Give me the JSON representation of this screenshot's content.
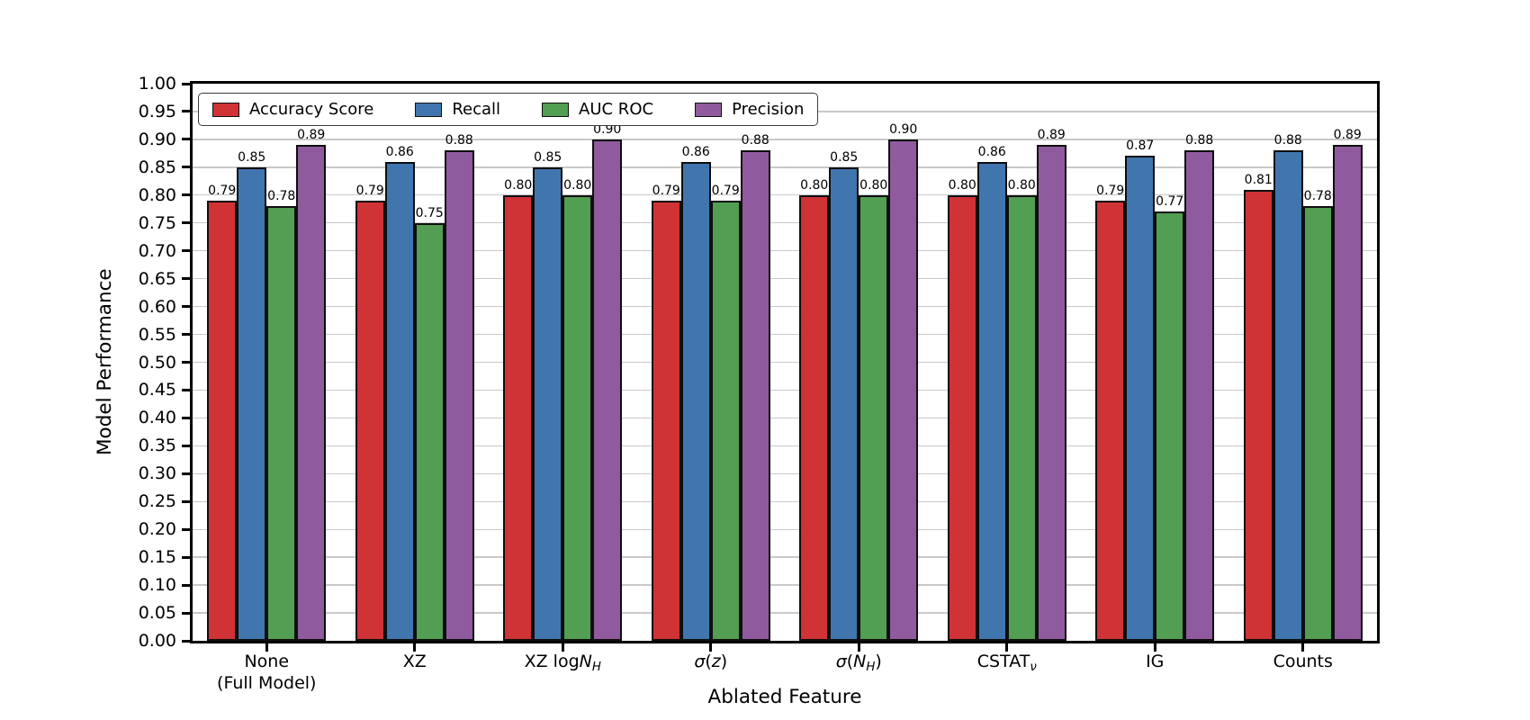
{
  "chart_data": {
    "type": "bar",
    "title": "",
    "xlabel": "Ablated Feature",
    "ylabel": "Model Performance",
    "ylim": [
      0.0,
      1.0
    ],
    "ytick_step": 0.05,
    "grid": true,
    "grid_color": "#c9c9c9",
    "background": "#ffffff",
    "bar_edge_color": "#0e0e0e",
    "legend_position": "upper left, horizontal",
    "value_label_decimals": 2,
    "categories": [
      {
        "name": "None (Full Model)",
        "segments": [
          {
            "t": "None"
          },
          {
            "br": true
          },
          {
            "t": "(Full Model)"
          }
        ]
      },
      {
        "name": "XZ",
        "segments": [
          {
            "t": "XZ"
          }
        ]
      },
      {
        "name": "XZ logN_H",
        "segments": [
          {
            "t": "XZ log"
          },
          {
            "t": "N",
            "i": true
          },
          {
            "t": "H",
            "i": true,
            "sub": true
          }
        ]
      },
      {
        "name": "sigma(z)",
        "segments": [
          {
            "t": "σ",
            "i": true
          },
          {
            "t": "("
          },
          {
            "t": "z",
            "i": true
          },
          {
            "t": ")"
          }
        ]
      },
      {
        "name": "sigma(N_H)",
        "segments": [
          {
            "t": "σ",
            "i": true
          },
          {
            "t": "("
          },
          {
            "t": "N",
            "i": true
          },
          {
            "t": "H",
            "i": true,
            "sub": true
          },
          {
            "t": ")"
          }
        ]
      },
      {
        "name": "CSTAT_nu",
        "segments": [
          {
            "t": "CSTAT"
          },
          {
            "t": "ν",
            "i": true,
            "sub": true
          }
        ]
      },
      {
        "name": "IG",
        "segments": [
          {
            "t": "IG"
          }
        ]
      },
      {
        "name": "Counts",
        "segments": [
          {
            "t": "Counts"
          }
        ]
      }
    ],
    "series": [
      {
        "name": "Accuracy Score",
        "color": "#cf3335",
        "values": [
          0.79,
          0.79,
          0.8,
          0.79,
          0.8,
          0.8,
          0.79,
          0.81
        ]
      },
      {
        "name": "Recall",
        "color": "#4076ad",
        "values": [
          0.85,
          0.86,
          0.85,
          0.86,
          0.85,
          0.86,
          0.87,
          0.88
        ]
      },
      {
        "name": "AUC ROC",
        "color": "#529e52",
        "values": [
          0.78,
          0.75,
          0.8,
          0.79,
          0.8,
          0.8,
          0.77,
          0.78
        ]
      },
      {
        "name": "Precision",
        "color": "#905a9e",
        "values": [
          0.89,
          0.88,
          0.9,
          0.88,
          0.9,
          0.89,
          0.88,
          0.89
        ]
      }
    ]
  }
}
